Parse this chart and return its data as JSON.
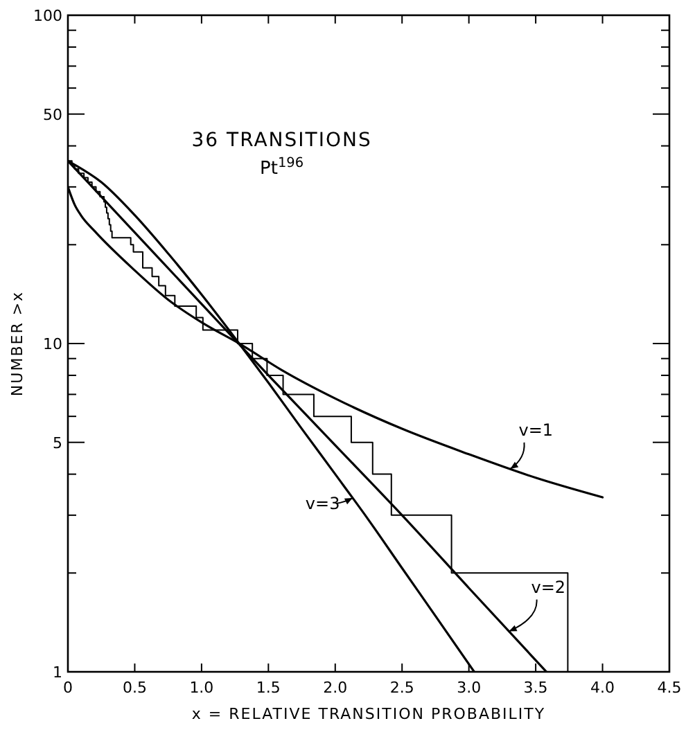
{
  "chart_data": {
    "type": "line",
    "title": "36 TRANSITIONS",
    "subtitle": "Pt$^{196}$",
    "xlabel": "x = RELATIVE TRANSITION PROBABILITY",
    "ylabel": "NUMBER >x",
    "log": "y",
    "xlim": [
      0,
      4.5
    ],
    "ylim": [
      1,
      100
    ],
    "xticks": [
      0,
      0.5,
      {
        "value": 1,
        "label": "1.0"
      },
      1.5,
      {
        "value": 2,
        "label": "2.0"
      },
      2.5,
      {
        "value": 3,
        "label": "3.0"
      },
      3.5,
      {
        "value": 4,
        "label": "4.0"
      },
      4.5
    ],
    "yticks": [
      1,
      {
        "value": 2,
        "label": null
      },
      {
        "value": 3,
        "label": null
      },
      {
        "value": 4,
        "label": null
      },
      5,
      {
        "value": 6,
        "label": null
      },
      {
        "value": 7,
        "label": null
      },
      {
        "value": 8,
        "label": null
      },
      {
        "value": 9,
        "label": null
      },
      10,
      {
        "value": 20,
        "label": null
      },
      {
        "value": 30,
        "label": null
      },
      {
        "value": 40,
        "label": null
      },
      50,
      {
        "value": 60,
        "label": null
      },
      {
        "value": 70,
        "label": null
      },
      {
        "value": 80,
        "label": null
      },
      {
        "value": 90,
        "label": null
      },
      100
    ],
    "grid": false,
    "marker": "none",
    "line_style": "solid",
    "series": [
      {
        "type": "step",
        "color": "#000000",
        "x": [
          0,
          0.03,
          0.05,
          0.08,
          0.12,
          0.15,
          0.18,
          0.21,
          0.24,
          0.27,
          0.28,
          0.29,
          0.3,
          0.31,
          0.32,
          0.33,
          0.47,
          0.49,
          0.56,
          0.63,
          0.68,
          0.73,
          0.8,
          0.96,
          1.01,
          1.27,
          1.38,
          1.49,
          1.61,
          1.84,
          2.12,
          2.28,
          2.42,
          2.87,
          3.74
        ],
        "values": [
          36,
          35,
          34,
          33,
          32,
          31,
          30,
          29,
          28,
          27,
          26,
          25,
          24,
          23,
          22,
          21,
          20,
          19,
          17,
          16,
          15,
          14,
          13,
          12,
          11,
          10,
          9,
          8,
          7,
          6,
          5,
          4,
          3,
          2,
          1
        ]
      },
      {
        "name": "v=1",
        "color": "#000000",
        "x": [
          0,
          0.05,
          0.1,
          0.2,
          0.5,
          0.75,
          1.0,
          1.3,
          1.6,
          2.0,
          2.5,
          3.0,
          3.5,
          4.0
        ],
        "values": [
          30,
          26.5,
          24.5,
          22,
          16.7,
          13.6,
          11.6,
          9.9,
          8.3,
          6.8,
          5.5,
          4.6,
          3.9,
          3.4
        ]
      },
      {
        "name": "v=2",
        "color": "#000000",
        "x": [
          0,
          0.5,
          1,
          1.5,
          2,
          2.5,
          3,
          3.58
        ],
        "values": [
          36,
          21.8,
          13.2,
          8.0,
          4.9,
          3.0,
          1.8,
          1.0
        ]
      },
      {
        "name": "v=3",
        "color": "#000000",
        "x": [
          0,
          0.25,
          0.5,
          0.75,
          1,
          1.25,
          1.5,
          1.75,
          2,
          2.25,
          2.5,
          2.75,
          3.04
        ],
        "values": [
          36,
          31,
          24.6,
          18.8,
          14.1,
          10.4,
          7.6,
          5.5,
          4.0,
          2.9,
          2.07,
          1.48,
          1.0
        ]
      }
    ]
  }
}
